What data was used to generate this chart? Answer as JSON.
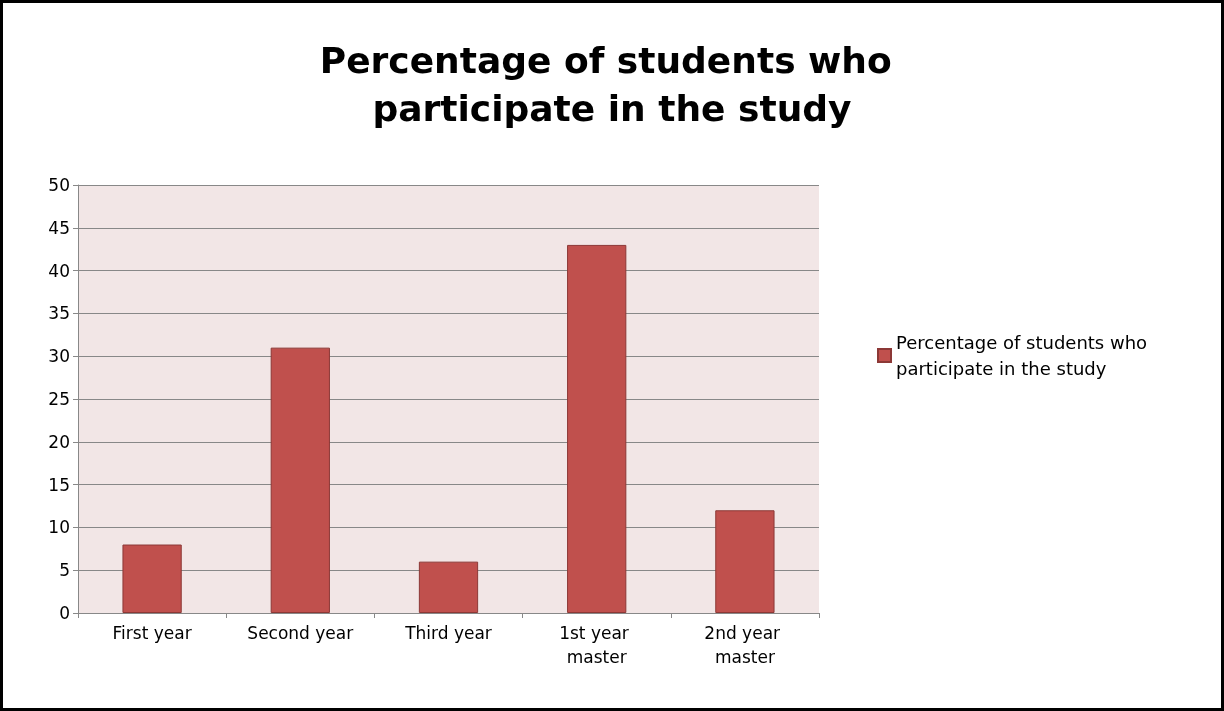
{
  "chart_data": {
    "type": "bar",
    "title": "Percentage of students who participate in the study",
    "categories": [
      "First year",
      "Second year",
      "Third year",
      "1st year master",
      "2nd year master"
    ],
    "series": [
      {
        "name": "Percentage of students who participate in the study",
        "color": "#c0504d",
        "values": [
          8,
          31,
          6,
          43,
          12
        ]
      }
    ],
    "ylim": [
      0,
      50
    ],
    "yticks": [
      0,
      5,
      10,
      15,
      20,
      25,
      30,
      35,
      40,
      45,
      50
    ],
    "grid": "y",
    "legend": "right"
  }
}
